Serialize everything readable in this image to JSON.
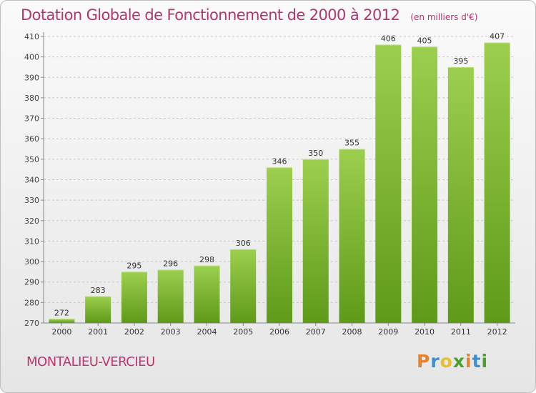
{
  "title": "Dotation Globale de Fonctionnement de 2000 à 2012",
  "unit": "(en milliers d'€)",
  "commune": "MONTALIEU-VERCIEU",
  "logo": {
    "letters": [
      "P",
      "r",
      "o",
      "x",
      "i",
      "t",
      "i"
    ]
  },
  "colors": {
    "title": "#b5366e",
    "bar_light": "#9ccf4e",
    "bar_dark": "#5e9a18",
    "logo": [
      "#e8822a",
      "#3a8fd6",
      "#e8c02a",
      "#4aa02c",
      "#e8822a",
      "#3a8fd6",
      "#4aa02c"
    ]
  },
  "chart_data": {
    "type": "bar",
    "categories": [
      "2000",
      "2001",
      "2002",
      "2003",
      "2004",
      "2005",
      "2006",
      "2007",
      "2008",
      "2009",
      "2010",
      "2011",
      "2012"
    ],
    "values": [
      272,
      283,
      295,
      296,
      298,
      306,
      346,
      350,
      355,
      406,
      405,
      395,
      407
    ],
    "title": "Dotation Globale de Fonctionnement de 2000 à 2012",
    "ylim": [
      270,
      410
    ],
    "yticks": [
      270,
      280,
      290,
      300,
      310,
      320,
      330,
      340,
      350,
      360,
      370,
      380,
      390,
      400,
      410
    ],
    "grid": true,
    "data_labels": true
  }
}
